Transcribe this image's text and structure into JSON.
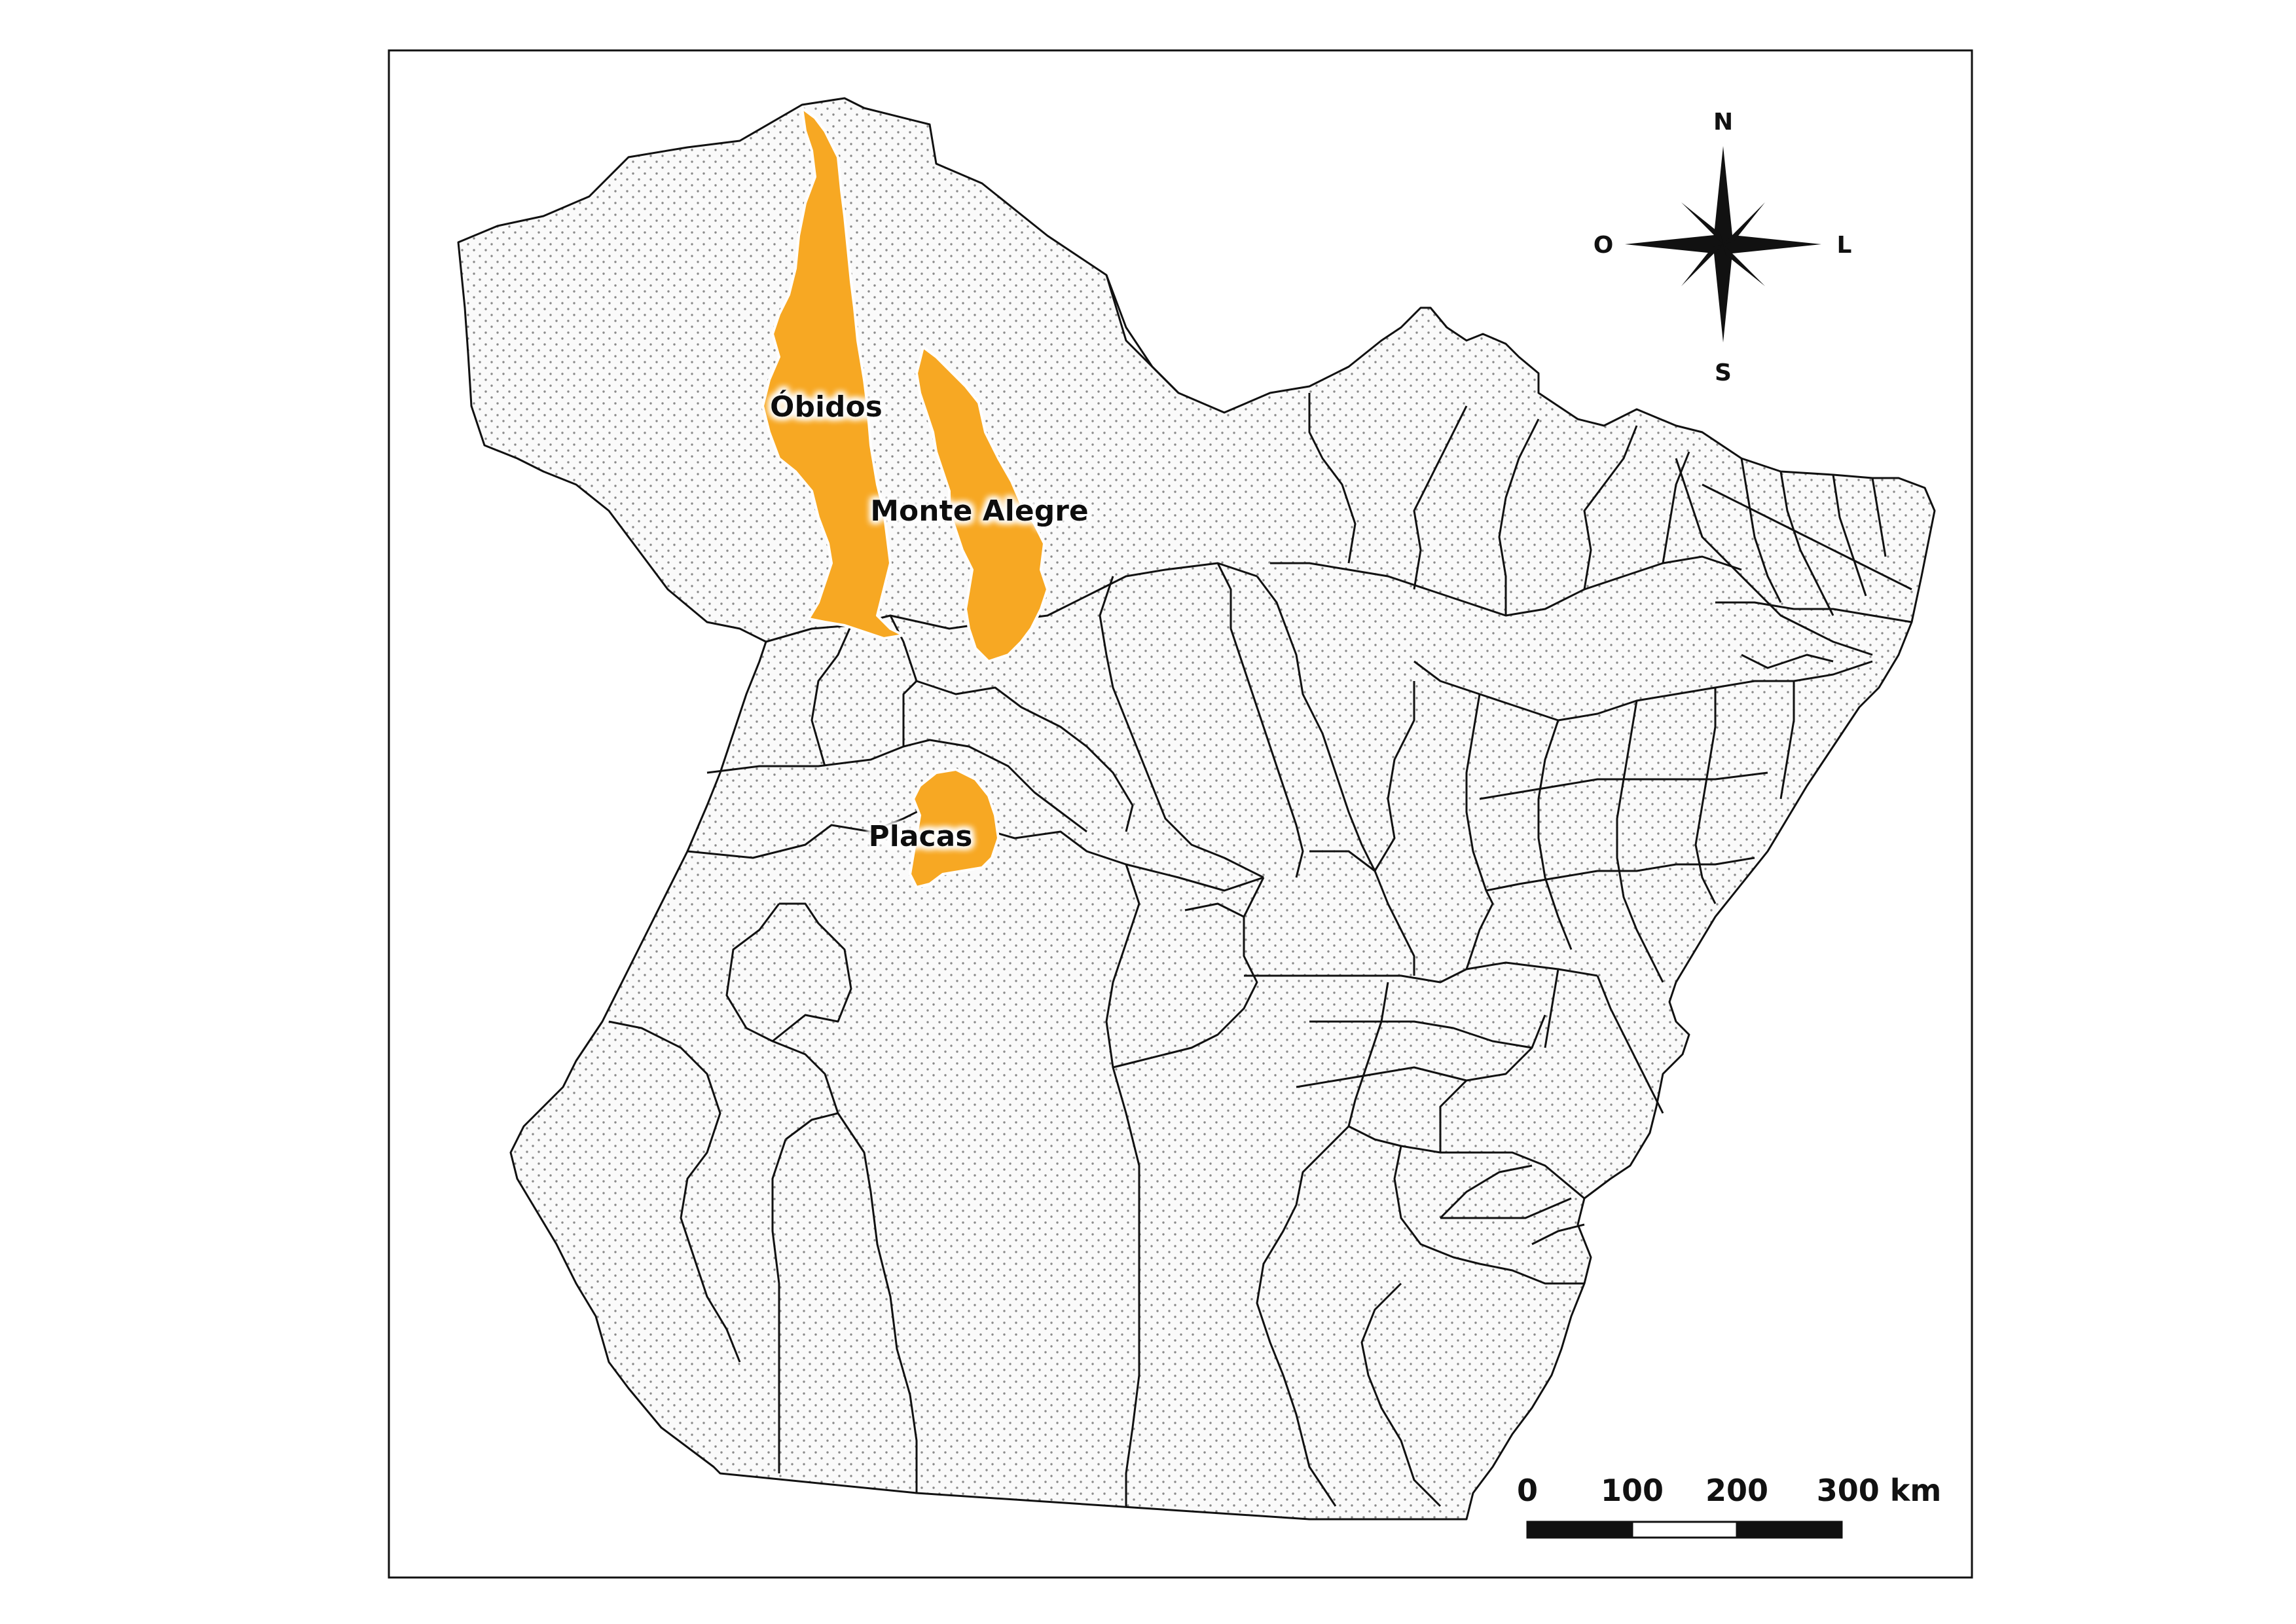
{
  "map": {
    "highlight_color": "#F7A823",
    "background_fill": "#efefef",
    "boundary_color": "#111111"
  },
  "regions": [
    {
      "name": "Óbidos",
      "highlighted": true
    },
    {
      "name": "Monte Alegre",
      "highlighted": true
    },
    {
      "name": "Placas",
      "highlighted": true
    }
  ],
  "compass": {
    "north": "N",
    "south": "S",
    "east": "L",
    "west": "O"
  },
  "scale_bar": {
    "ticks": [
      "0",
      "100",
      "200",
      "300 km"
    ]
  }
}
